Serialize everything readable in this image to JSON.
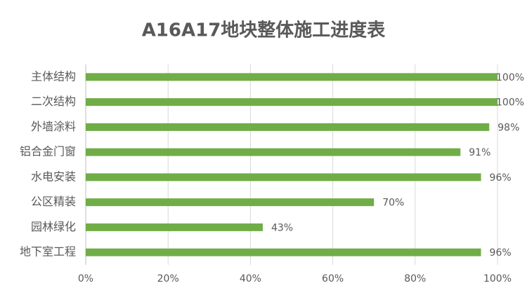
{
  "chart_data": {
    "type": "bar",
    "orientation": "horizontal",
    "title": "A16A17地块整体施工进度表",
    "categories": [
      "主体结构",
      "二次结构",
      "外墙涂料",
      "铝合金门窗",
      "水电安装",
      "公区精装",
      "园林绿化",
      "地下室工程"
    ],
    "values": [
      100,
      100,
      98,
      91,
      96,
      70,
      43,
      96
    ],
    "value_labels": [
      "100%",
      "100%",
      "98%",
      "91%",
      "96%",
      "70%",
      "43%",
      "96%"
    ],
    "color": "#70ad47",
    "xlim": [
      0,
      100
    ],
    "xticks": [
      {
        "value": 0,
        "label": "0%"
      },
      {
        "value": 20,
        "label": "20%"
      },
      {
        "value": 40,
        "label": "40%"
      },
      {
        "value": 60,
        "label": "60%"
      },
      {
        "value": 80,
        "label": "80%"
      },
      {
        "value": 100,
        "label": "100%"
      }
    ],
    "grid": true
  }
}
